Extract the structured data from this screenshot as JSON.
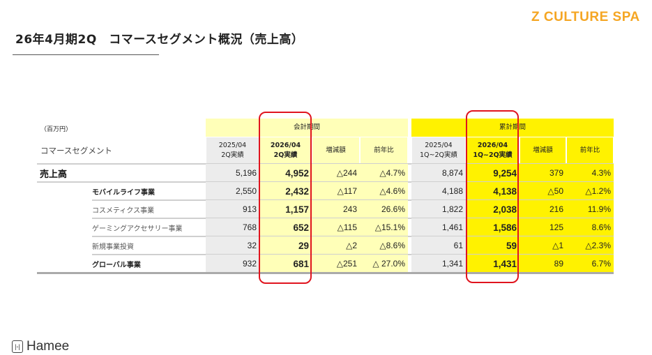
{
  "title": "26年4月期2Q　コマースセグメント概況（売上高）",
  "brand": "Z CULTURE SPA",
  "unit": "（百万円）",
  "segment_header": "コマースセグメント",
  "period_group": "会計期間",
  "cumulative_group": "累計期間",
  "columns": {
    "p_prev": [
      "2025/04",
      "2Q実績"
    ],
    "p_curr": [
      "2026/04",
      "2Q実績"
    ],
    "c_prev": [
      "2025/04",
      "1Q~2Q実績"
    ],
    "c_curr": [
      "2026/04",
      "1Q~2Q実績"
    ],
    "diff": "増減額",
    "yoy": "前年比"
  },
  "rows": [
    {
      "label": "売上高",
      "values": [
        "5,196",
        "4,952",
        "△244",
        "△4.7%",
        "8,874",
        "9,254",
        "379",
        "4.3%"
      ]
    },
    {
      "label": "モバイルライフ事業",
      "values": [
        "2,550",
        "2,432",
        "△117",
        "△4.6%",
        "4,188",
        "4,138",
        "△50",
        "△1.2%"
      ]
    },
    {
      "label": "コスメティクス事業",
      "values": [
        "913",
        "1,157",
        "243",
        "26.6%",
        "1,822",
        "2,038",
        "216",
        "11.9%"
      ]
    },
    {
      "label": "ゲーミングアクセサリー事業",
      "values": [
        "768",
        "652",
        "△115",
        "△15.1%",
        "1,461",
        "1,586",
        "125",
        "8.6%"
      ]
    },
    {
      "label": "新規事業投資",
      "values": [
        "32",
        "29",
        "△2",
        "△8.6%",
        "61",
        "59",
        "△1",
        "△2.3%"
      ]
    },
    {
      "label": "グローバル事業",
      "values": [
        "932",
        "681",
        "△251",
        "△ 27.0%",
        "1,341",
        "1,431",
        "89",
        "6.7%"
      ]
    }
  ],
  "logo": "Hamee",
  "colors": {
    "brand": "#f5a623",
    "highlight": "#e0141e",
    "light_yellow": "#ffffb8",
    "yellow": "#fff200"
  }
}
